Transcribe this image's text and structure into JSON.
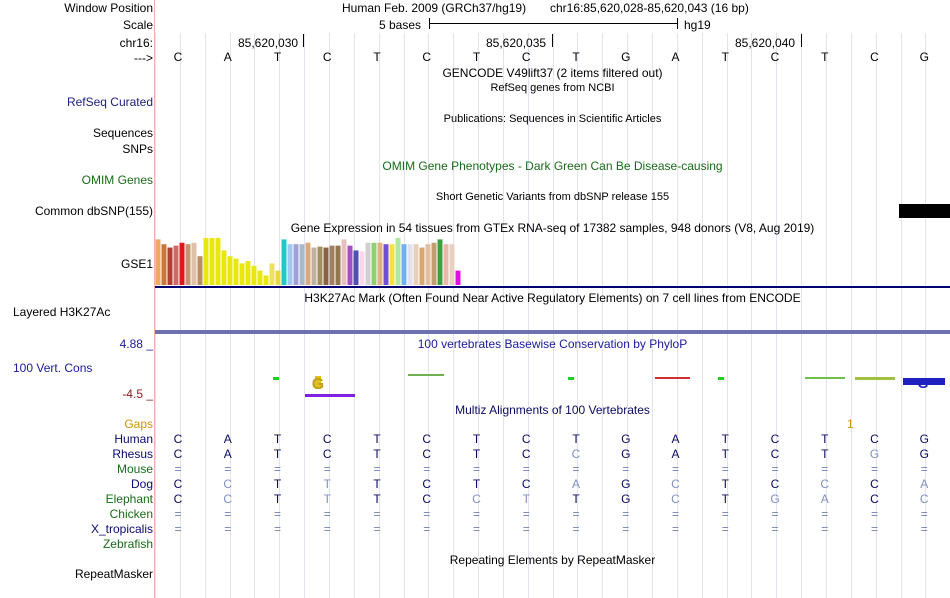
{
  "header": {
    "window_position_label": "Window Position",
    "scale_label": "Scale",
    "chrom_label": "chr16:",
    "strand_label": "--->",
    "assembly_text": "Human Feb. 2009 (GRCh37/hg19)",
    "position_text": "chr16:85,620,028-85,620,043 (16 bp)",
    "scale_text": "5 bases",
    "db_text": "hg19",
    "ticks": [
      "85,620,030",
      "85,620,035",
      "85,620,040"
    ]
  },
  "sequence": [
    "C",
    "A",
    "T",
    "C",
    "T",
    "C",
    "T",
    "C",
    "T",
    "G",
    "A",
    "T",
    "C",
    "T",
    "C",
    "G"
  ],
  "tracks": {
    "gencode": {
      "title": "GENCODE V49lift37 (2 items filtered out)"
    },
    "refseq": {
      "label": "RefSeq Curated",
      "subtitle": "RefSeq genes from NCBI",
      "color": "#20207f"
    },
    "publications": {
      "subtitle": "Publications: Sequences in Scientific Articles"
    },
    "sequences": {
      "label": "Sequences"
    },
    "snps": {
      "label": "SNPs"
    },
    "omim": {
      "title": "OMIM Gene Phenotypes - Dark Green Can Be Disease-causing",
      "label": "OMIM Genes",
      "color": "#186b18"
    },
    "dbsnp": {
      "subtitle": "Short Genetic Variants from dbSNP release 155",
      "label": "Common dbSNP(155)"
    },
    "gtex": {
      "title": "Gene Expression in 54 tissues from GTEx RNA-seq of 17382 samples, 948 donors (V8, Aug 2019)",
      "label": "GSE1"
    },
    "h3k27ac": {
      "title": "H3K27Ac Mark (Often Found Near Active Regulatory Elements) on 7 cell lines from ENCODE",
      "label": "Layered H3K27Ac"
    },
    "phylop": {
      "title": "100 vertebrates Basewise Conservation by PhyloP",
      "label": "100 Vert. Cons",
      "max": "4.88 _",
      "min": "-4.5 _",
      "color": "#1a1a9b",
      "max_color": "#1a1a9b",
      "min_color": "#8b1a1a"
    },
    "multiz": {
      "title": "Multiz Alignments of 100 Vertebrates",
      "color": "#0a0a60"
    },
    "gaps": {
      "label": "Gaps",
      "color": "#d4900a",
      "marker": "1"
    },
    "repeatmasker": {
      "title": "Repeating Elements by RepeatMasker",
      "label": "RepeatMasker"
    }
  },
  "species": [
    {
      "name": "Human",
      "color": "#0a0a70",
      "row": [
        "C",
        "A",
        "T",
        "C",
        "T",
        "C",
        "T",
        "C",
        "T",
        "G",
        "A",
        "T",
        "C",
        "T",
        "C",
        "G"
      ]
    },
    {
      "name": "Rhesus",
      "color": "#0a0a70",
      "row": [
        "C",
        "A",
        "T",
        "C",
        "T",
        "C",
        "T",
        "C",
        "C",
        "G",
        "A",
        "T",
        "C",
        "T",
        "G",
        "G"
      ]
    },
    {
      "name": "Mouse",
      "color": "#186b18",
      "row": [
        "=",
        "=",
        "=",
        "=",
        "=",
        "=",
        "=",
        "=",
        "=",
        "=",
        "=",
        "=",
        "=",
        "=",
        "=",
        "="
      ]
    },
    {
      "name": "Dog",
      "color": "#0a0a70",
      "row": [
        "C",
        "C",
        "T",
        "T",
        "T",
        "C",
        "T",
        "C",
        "A",
        "G",
        "C",
        "T",
        "C",
        "C",
        "C",
        "A"
      ]
    },
    {
      "name": "Elephant",
      "color": "#186b18",
      "row": [
        "C",
        "C",
        "T",
        "T",
        "T",
        "C",
        "C",
        "T",
        "T",
        "G",
        "C",
        "T",
        "G",
        "A",
        "C",
        "C"
      ]
    },
    {
      "name": "Chicken",
      "color": "#186b18",
      "row": [
        "=",
        "=",
        "=",
        "=",
        "=",
        "=",
        "=",
        "=",
        "=",
        "=",
        "=",
        "=",
        "=",
        "=",
        "=",
        "="
      ]
    },
    {
      "name": "X_tropicalis",
      "color": "#0a0a70",
      "row": [
        "=",
        "=",
        "=",
        "=",
        "=",
        "=",
        "=",
        "=",
        "=",
        "=",
        "=",
        "=",
        "=",
        "=",
        "=",
        "="
      ]
    },
    {
      "name": "Zebrafish",
      "color": "#186b18",
      "row": []
    }
  ],
  "gtex_bars": [
    {
      "color": "#f0a868",
      "value": 0.95
    },
    {
      "color": "#c87838",
      "value": 0.85
    },
    {
      "color": "#b04030",
      "value": 0.78
    },
    {
      "color": "#d06868",
      "value": 0.82
    },
    {
      "color": "#e01818",
      "value": 0.88
    },
    {
      "color": "#c89470",
      "value": 0.85
    },
    {
      "color": "#e0c0a8",
      "value": 0.88
    },
    {
      "color": "#b89060",
      "value": 0.6
    },
    {
      "color": "#e8e810",
      "value": 0.98
    },
    {
      "color": "#e8e810",
      "value": 0.98
    },
    {
      "color": "#e8e810",
      "value": 0.98
    },
    {
      "color": "#e8e810",
      "value": 0.72
    },
    {
      "color": "#e8e810",
      "value": 0.6
    },
    {
      "color": "#e8e810",
      "value": 0.55
    },
    {
      "color": "#e8e810",
      "value": 0.45
    },
    {
      "color": "#e8e810",
      "value": 0.5
    },
    {
      "color": "#e8e810",
      "value": 0.4
    },
    {
      "color": "#e8e810",
      "value": 0.3
    },
    {
      "color": "#e8e810",
      "value": 0.2
    },
    {
      "color": "#f0e060",
      "value": 0.45
    },
    {
      "color": "#e8d840",
      "value": 0.3
    },
    {
      "color": "#20c8c8",
      "value": 0.95
    },
    {
      "color": "#a0c8f0",
      "value": 0.85
    },
    {
      "color": "#a0a0d8",
      "value": 0.85
    },
    {
      "color": "#a8b8c8",
      "value": 0.85
    },
    {
      "color": "#d8a880",
      "value": 0.88
    },
    {
      "color": "#c0b0a0",
      "value": 0.78
    },
    {
      "color": "#a09060",
      "value": 0.8
    },
    {
      "color": "#8a6040",
      "value": 0.78
    },
    {
      "color": "#a08060",
      "value": 0.82
    },
    {
      "color": "#907850",
      "value": 0.82
    },
    {
      "color": "#e8c0c0",
      "value": 0.95
    },
    {
      "color": "#a050c0",
      "value": 0.82
    },
    {
      "color": "#5050b0",
      "value": 0.72
    },
    {
      "color": "#f8d8e8",
      "value": 0.7
    },
    {
      "color": "#d0d0d0",
      "value": 0.88
    },
    {
      "color": "#90d070",
      "value": 0.88
    },
    {
      "color": "#e0b080",
      "value": 0.88
    },
    {
      "color": "#7050d0",
      "value": 0.85
    },
    {
      "color": "#f8e040",
      "value": 0.85
    },
    {
      "color": "#b0e8a0",
      "value": 0.98
    },
    {
      "color": "#70b0f0",
      "value": 0.85
    },
    {
      "color": "#e0e0f0",
      "value": 0.85
    },
    {
      "color": "#e8d0b8",
      "value": 0.85
    },
    {
      "color": "#d8a870",
      "value": 0.78
    },
    {
      "color": "#e0c0a0",
      "value": 0.85
    },
    {
      "color": "#c0a070",
      "value": 0.88
    },
    {
      "color": "#40a040",
      "value": 0.95
    },
    {
      "color": "#e8b8a8",
      "value": 0.85
    },
    {
      "color": "#e8d0c0",
      "value": 0.85
    },
    {
      "color": "#e010e0",
      "value": 0.3
    }
  ],
  "colors": {
    "gtex_baseline": "#000070",
    "h3k27ac_band": "#7070b0",
    "dbsnp_block": "#000000",
    "grid": "#e3e3ee"
  }
}
